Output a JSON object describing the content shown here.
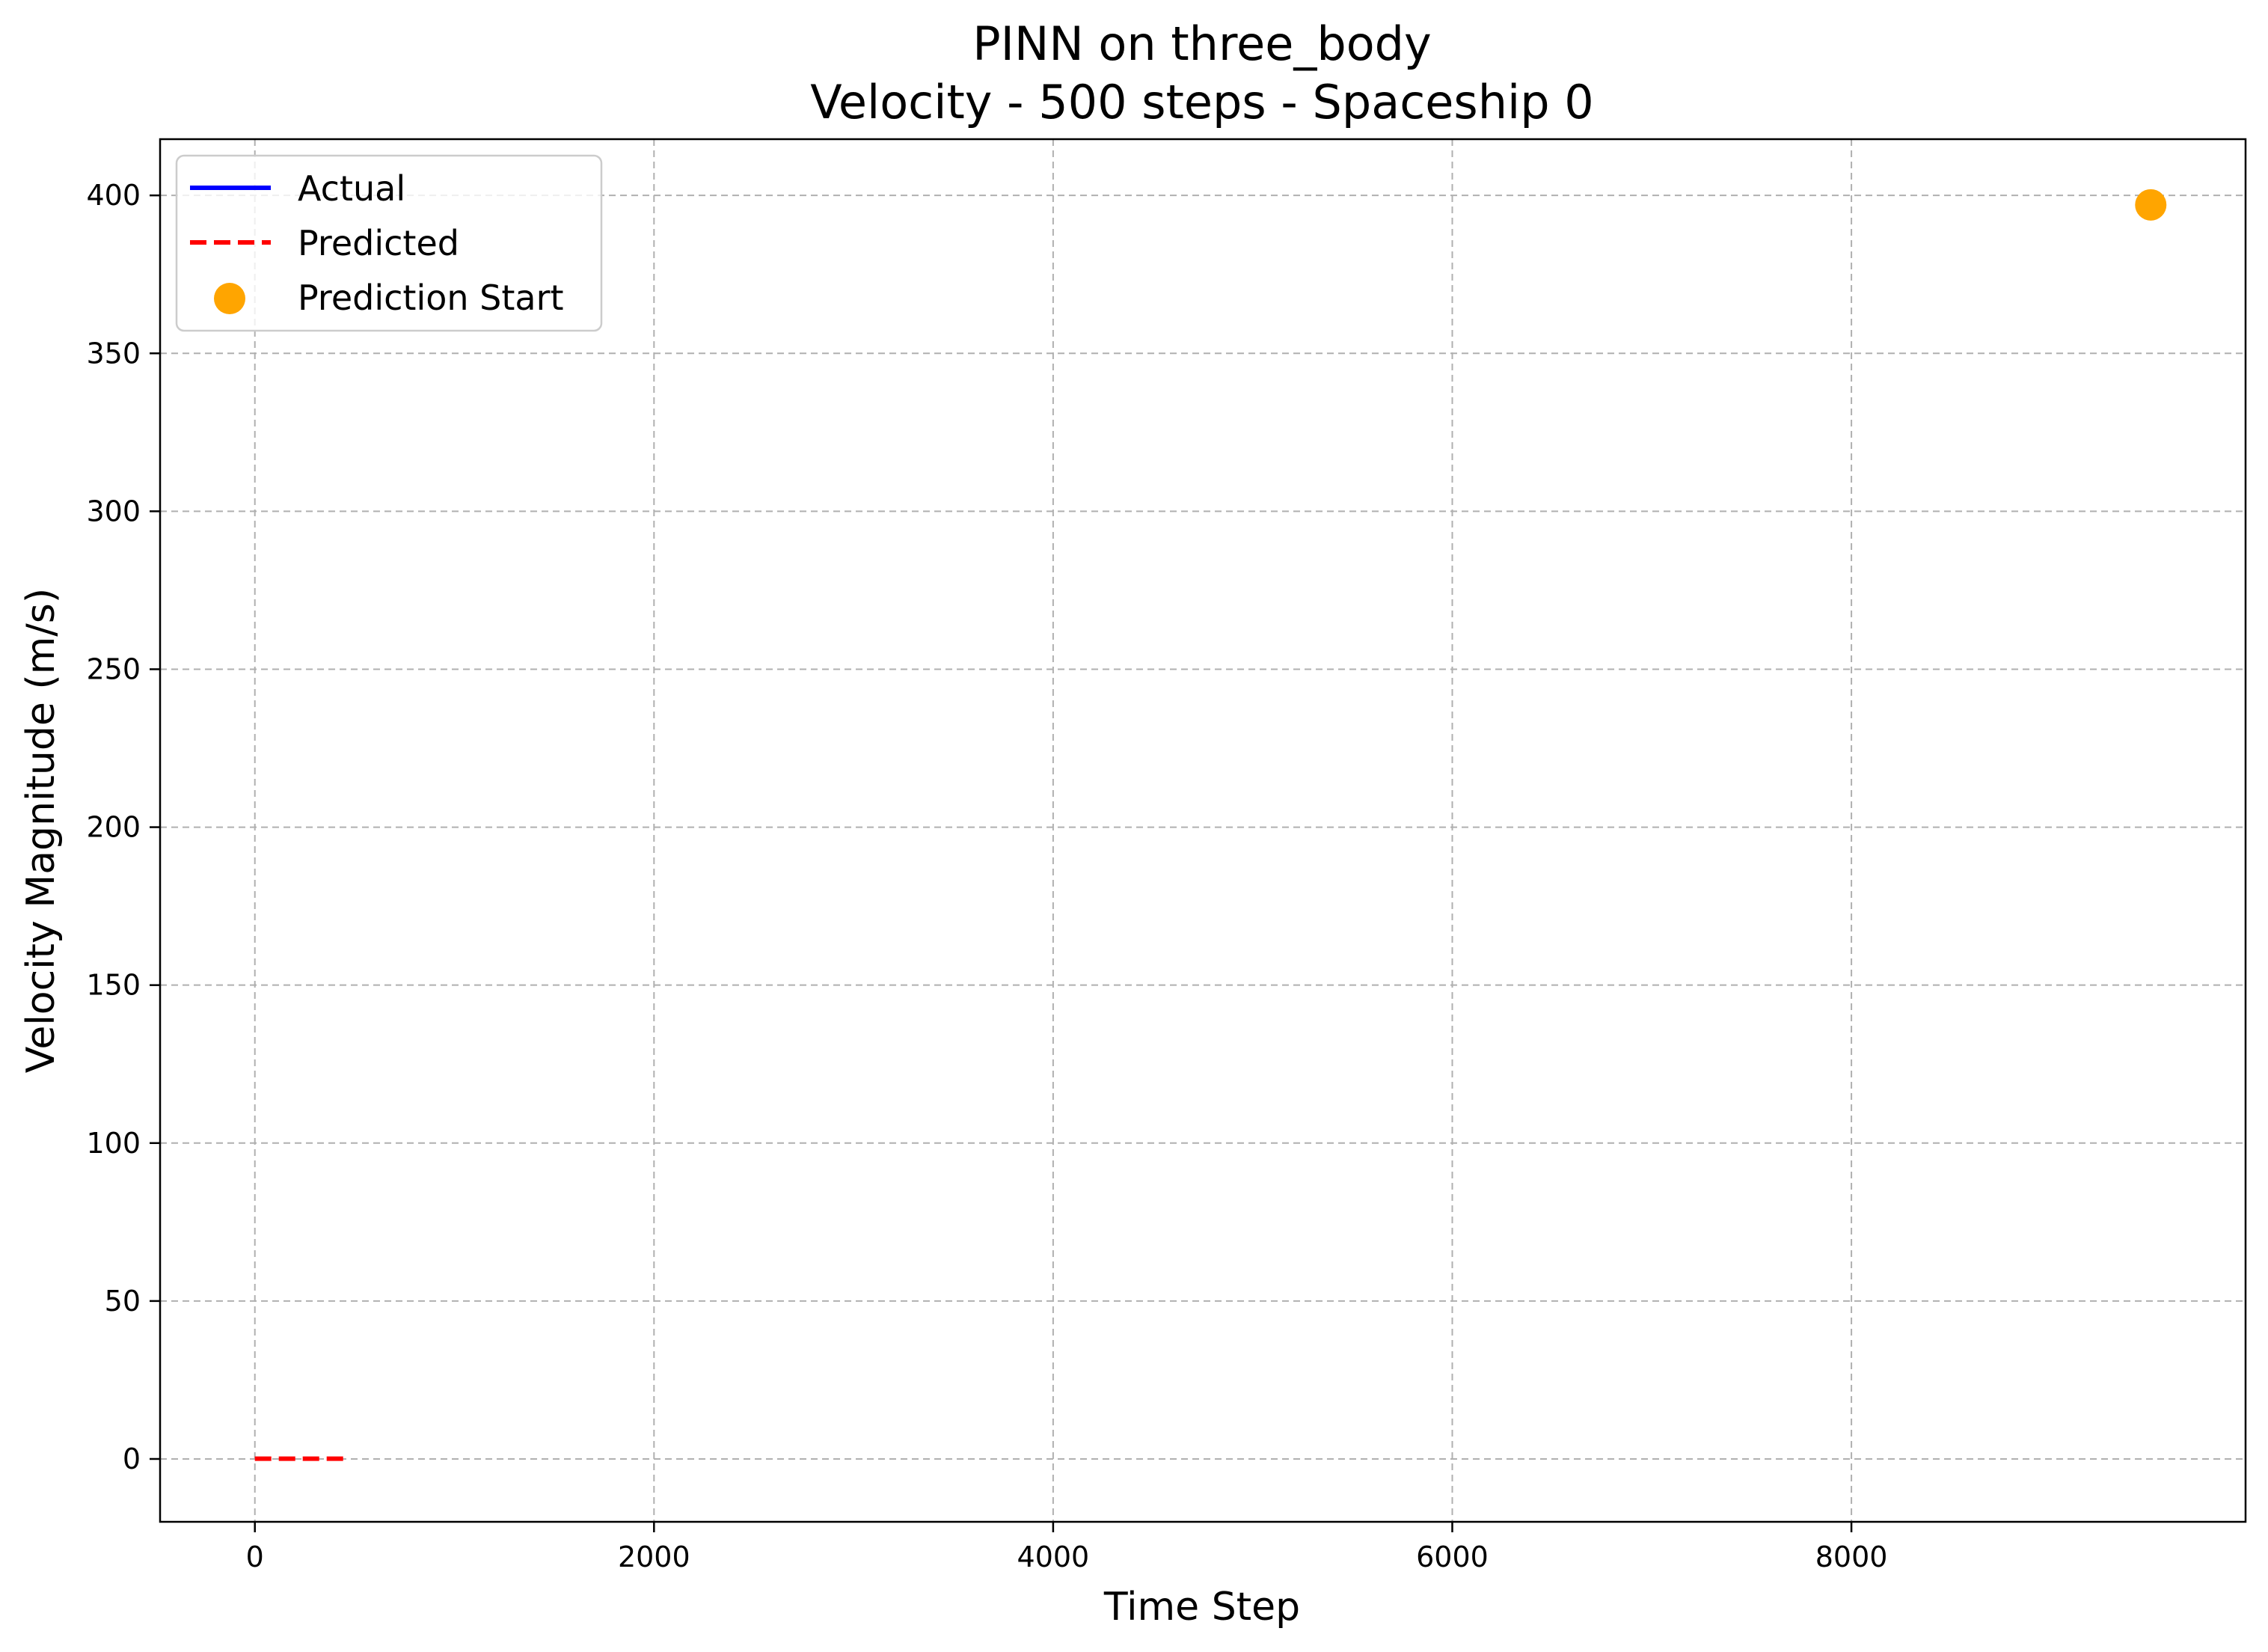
{
  "chart_data": {
    "type": "line",
    "title_line1": "PINN on three_body",
    "title_line2": "Velocity - 500 steps - Spaceship 0",
    "xlabel": "Time Step",
    "ylabel": "Velocity Magnitude (m/s)",
    "xlim": [
      -475,
      9975
    ],
    "ylim": [
      -19.9,
      417.8
    ],
    "xticks": [
      0,
      2000,
      4000,
      6000,
      8000
    ],
    "xtick_labels": [
      "0",
      "2000",
      "4000",
      "6000",
      "8000"
    ],
    "yticks": [
      0,
      50,
      100,
      150,
      200,
      250,
      300,
      350,
      400
    ],
    "ytick_labels": [
      "0",
      "50",
      "100",
      "150",
      "200",
      "250",
      "300",
      "350",
      "400"
    ],
    "grid": true,
    "legend_position": "top-left",
    "series": [
      {
        "name": "Actual",
        "style": "solid",
        "color": "#0000ff",
        "x": [],
        "y": []
      },
      {
        "name": "Predicted",
        "style": "dashed",
        "color": "#ff0000",
        "x": [
          0,
          100,
          200,
          300,
          400,
          450
        ],
        "y": [
          0.1,
          0.1,
          0.1,
          0.1,
          0.1,
          0.1
        ]
      }
    ],
    "markers": [
      {
        "name": "Prediction Start",
        "color": "#ffa500",
        "x": 9500,
        "y": 397
      }
    ]
  }
}
